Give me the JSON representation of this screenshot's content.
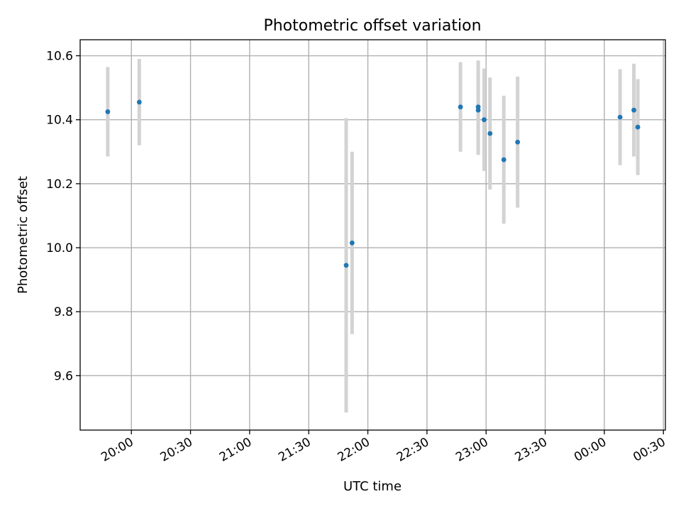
{
  "chart_data": {
    "type": "scatter",
    "title": "Photometric offset variation",
    "xlabel": "UTC time",
    "ylabel": "Photometric offset",
    "grid": true,
    "legend": "none",
    "colors": {
      "point": "#1f77b4",
      "errorbar": "#d3d3d3"
    },
    "xlim": [
      "19:34",
      "00:31"
    ],
    "ylim": [
      9.43,
      10.65
    ],
    "x_ticks": [
      "20:00",
      "20:30",
      "21:00",
      "21:30",
      "22:00",
      "22:30",
      "23:00",
      "23:30",
      "00:00",
      "00:30"
    ],
    "y_ticks": [
      9.6,
      9.8,
      10.0,
      10.2,
      10.4,
      10.6
    ],
    "points": [
      {
        "x": "19:48",
        "y": 10.425,
        "err": 0.14
      },
      {
        "x": "20:04",
        "y": 10.455,
        "err": 0.135
      },
      {
        "x": "21:49",
        "y": 9.945,
        "err": 0.46
      },
      {
        "x": "21:52",
        "y": 10.015,
        "err": 0.285
      },
      {
        "x": "22:47",
        "y": 10.44,
        "err": 0.14
      },
      {
        "x": "22:56",
        "y": 10.43,
        "err": 0.14
      },
      {
        "x": "22:56",
        "y": 10.44,
        "err": 0.145
      },
      {
        "x": "22:59",
        "y": 10.4,
        "err": 0.16
      },
      {
        "x": "23:02",
        "y": 10.357,
        "err": 0.175
      },
      {
        "x": "23:09",
        "y": 10.275,
        "err": 0.2
      },
      {
        "x": "23:16",
        "y": 10.33,
        "err": 0.205
      },
      {
        "x": "00:08",
        "y": 10.408,
        "err": 0.15
      },
      {
        "x": "00:15",
        "y": 10.43,
        "err": 0.145
      },
      {
        "x": "00:17",
        "y": 10.377,
        "err": 0.15
      }
    ]
  }
}
